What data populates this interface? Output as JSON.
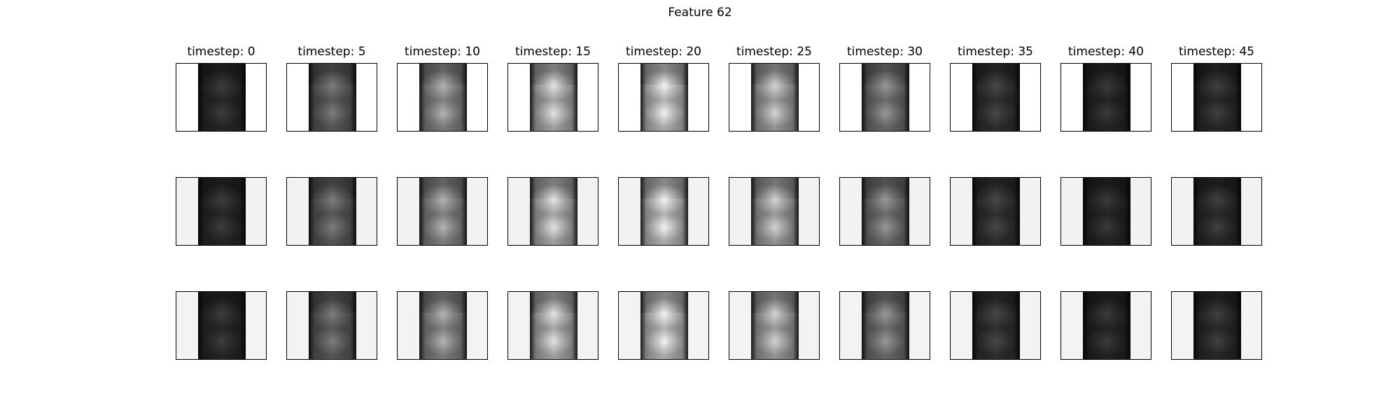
{
  "figure": {
    "title": "Feature 62"
  },
  "columns": [
    {
      "label": "timestep: 0",
      "brightness": 0.18
    },
    {
      "label": "timestep: 5",
      "brightness": 0.42
    },
    {
      "label": "timestep: 10",
      "brightness": 0.62
    },
    {
      "label": "timestep: 15",
      "brightness": 0.8
    },
    {
      "label": "timestep: 20",
      "brightness": 0.86
    },
    {
      "label": "timestep: 25",
      "brightness": 0.74
    },
    {
      "label": "timestep: 30",
      "brightness": 0.52
    },
    {
      "label": "timestep: 35",
      "brightness": 0.22
    },
    {
      "label": "timestep: 40",
      "brightness": 0.17
    },
    {
      "label": "timestep: 45",
      "brightness": 0.19
    }
  ],
  "rows": [
    {
      "background": "#ffffff"
    },
    {
      "background": "#f2f2f2"
    },
    {
      "background": "#f3f3f3"
    }
  ]
}
